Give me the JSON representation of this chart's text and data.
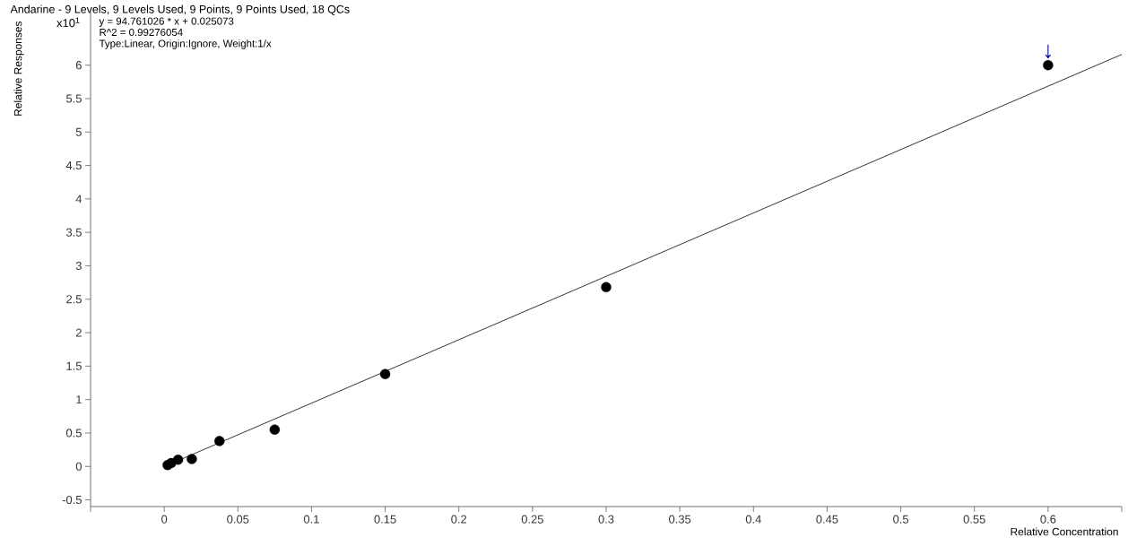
{
  "chart_data": {
    "type": "scatter",
    "title": "Andarine - 9 Levels, 9 Levels Used, 9 Points, 9 Points Used, 18 QCs",
    "xlabel": "Relative Concentration",
    "ylabel": "Relative Responses",
    "annotations": [
      "x10$^{1}$",
      "y = 94.761026 * x  + 0.025073",
      "R^2 = 0.99276054",
      "Type:Linear, Origin:Ignore, Weight:1/x",
      {
        "text": "↓",
        "x": 0.6,
        "y": 6.0
      }
    ],
    "x": [
      0.0023,
      0.0047,
      0.0094,
      0.01875,
      0.0375,
      0.075,
      0.15,
      0.3,
      0.6
    ],
    "series": [
      {
        "color": "#000000",
        "marker": "circle",
        "values": [
          0.02,
          0.05,
          0.1,
          0.11,
          0.38,
          0.55,
          1.38,
          2.68,
          6.0
        ]
      },
      {
        "type": "line",
        "color": "#000000",
        "marker": "none",
        "line_style": "solid",
        "x": [
          0.0023,
          0.65
        ],
        "values": [
          0.02,
          6.16
        ]
      }
    ],
    "grid": false,
    "xlim": [
      -0.05,
      0.65
    ],
    "ylim": [
      -0.6,
      6.8
    ],
    "xticks": [
      {
        "value": -0.05,
        "label": null
      },
      0,
      0.05,
      0.1,
      0.15,
      0.2,
      0.25,
      0.3,
      0.35,
      0.4,
      0.45,
      0.5,
      0.55,
      0.6,
      {
        "value": 0.65,
        "label": null
      }
    ],
    "yticks": [
      -0.5,
      0,
      0.5,
      1,
      1.5,
      2,
      2.5,
      3,
      3.5,
      4,
      4.5,
      5,
      5.5,
      6
    ]
  }
}
